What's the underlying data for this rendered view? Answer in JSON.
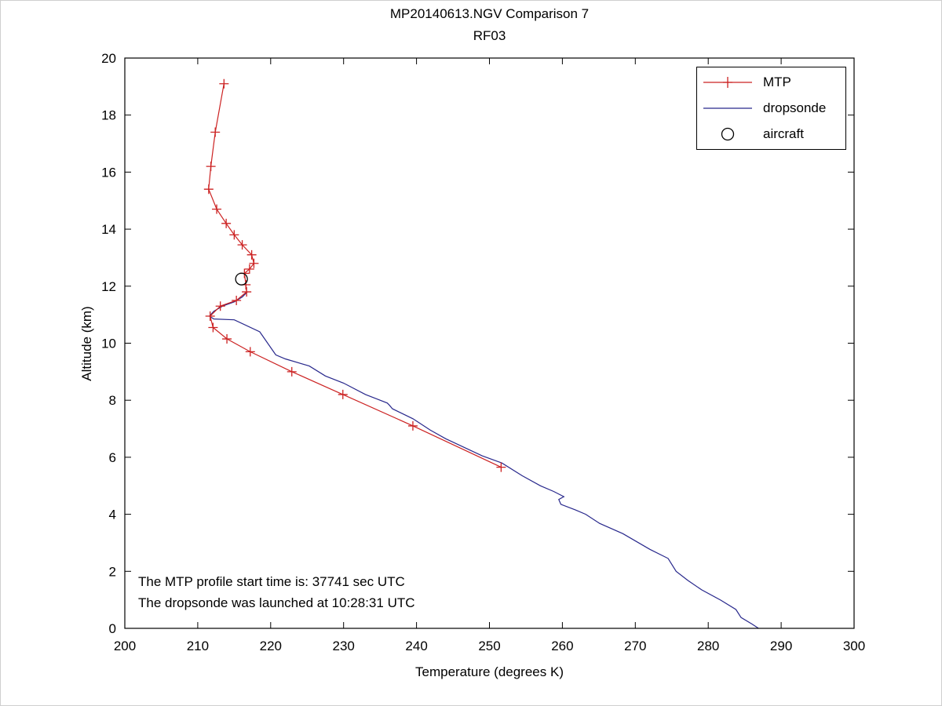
{
  "figure": {
    "title_line1": "MP20140613.NGV Comparison 7",
    "title_line2": "RF03"
  },
  "axes": {
    "x_label": "Temperature (degrees K)",
    "y_label": "Altitude (km)"
  },
  "legend": {
    "items": [
      {
        "label": "MTP",
        "marker": "red-line-plus"
      },
      {
        "label": "dropsonde",
        "marker": "blue-line"
      },
      {
        "label": "aircraft",
        "marker": "black-circle"
      }
    ]
  },
  "annotations": [
    {
      "text": "The MTP profile start time is: 37741 sec UTC"
    },
    {
      "text": "The dropsonde was launched at 10:28:31 UTC"
    }
  ],
  "colors": {
    "mtp": "#cc2222",
    "dropsonde": "#28288c",
    "aircraft": "#000000",
    "axis": "#000000"
  },
  "chart_data": {
    "type": "line",
    "title": "MP20140613.NGV Comparison 7 — RF03",
    "xlabel": "Temperature (degrees K)",
    "ylabel": "Altitude (km)",
    "xlim": [
      200,
      300
    ],
    "ylim": [
      0,
      20
    ],
    "x_ticks": [
      200,
      210,
      220,
      230,
      240,
      250,
      260,
      270,
      280,
      290,
      300
    ],
    "y_ticks": [
      0,
      2,
      4,
      6,
      8,
      10,
      12,
      14,
      16,
      18,
      20
    ],
    "grid": false,
    "legend_position": "top-right",
    "series": [
      {
        "name": "dropsonde",
        "marker": "none",
        "points": [
          [
            216.8,
            11.8
          ],
          [
            216.1,
            11.62
          ],
          [
            215.0,
            11.45
          ],
          [
            213.4,
            11.3
          ],
          [
            212.2,
            11.12
          ],
          [
            211.6,
            10.95
          ],
          [
            212.2,
            10.85
          ],
          [
            215.0,
            10.82
          ],
          [
            218.5,
            10.4
          ],
          [
            220.7,
            9.59
          ],
          [
            222.0,
            9.45
          ],
          [
            225.3,
            9.2
          ],
          [
            227.5,
            8.85
          ],
          [
            230.0,
            8.6
          ],
          [
            233.0,
            8.2
          ],
          [
            236.0,
            7.9
          ],
          [
            236.3,
            7.82
          ],
          [
            236.7,
            7.7
          ],
          [
            239.5,
            7.35
          ],
          [
            241.9,
            6.95
          ],
          [
            244.0,
            6.65
          ],
          [
            246.5,
            6.35
          ],
          [
            249.0,
            6.05
          ],
          [
            251.7,
            5.8
          ],
          [
            254.5,
            5.35
          ],
          [
            257.0,
            5.0
          ],
          [
            258.8,
            4.8
          ],
          [
            260.2,
            4.62
          ],
          [
            259.5,
            4.52
          ],
          [
            259.8,
            4.35
          ],
          [
            261.8,
            4.15
          ],
          [
            263.2,
            4.0
          ],
          [
            265.1,
            3.68
          ],
          [
            268.3,
            3.32
          ],
          [
            272.0,
            2.77
          ],
          [
            274.5,
            2.45
          ],
          [
            275.6,
            2.0
          ],
          [
            277.2,
            1.68
          ],
          [
            279.1,
            1.35
          ],
          [
            281.7,
            0.99
          ],
          [
            283.8,
            0.66
          ],
          [
            284.5,
            0.38
          ],
          [
            286.0,
            0.15
          ],
          [
            286.9,
            0.0
          ]
        ]
      },
      {
        "name": "MTP",
        "marker": "plus",
        "points": [
          [
            213.6,
            19.1
          ],
          [
            212.4,
            17.4
          ],
          [
            211.8,
            16.2
          ],
          [
            211.5,
            15.4
          ],
          [
            212.6,
            14.7
          ],
          [
            213.9,
            14.2
          ],
          [
            215.0,
            13.8
          ],
          [
            216.1,
            13.45
          ],
          [
            217.4,
            13.1
          ],
          [
            217.7,
            12.8
          ],
          [
            217.1,
            12.6
          ],
          [
            216.4,
            12.45
          ],
          [
            216.6,
            12.05
          ],
          [
            216.7,
            11.8
          ],
          [
            215.3,
            11.5
          ],
          [
            213.1,
            11.3
          ],
          [
            211.7,
            10.95
          ],
          [
            212.1,
            10.55
          ],
          [
            214.0,
            10.15
          ],
          [
            217.2,
            9.7
          ],
          [
            222.9,
            9.0
          ],
          [
            229.9,
            8.2
          ],
          [
            239.5,
            7.1
          ],
          [
            251.6,
            5.65
          ]
        ]
      },
      {
        "name": "aircraft",
        "marker": "circle",
        "points": [
          [
            216.0,
            12.25
          ]
        ]
      }
    ]
  }
}
